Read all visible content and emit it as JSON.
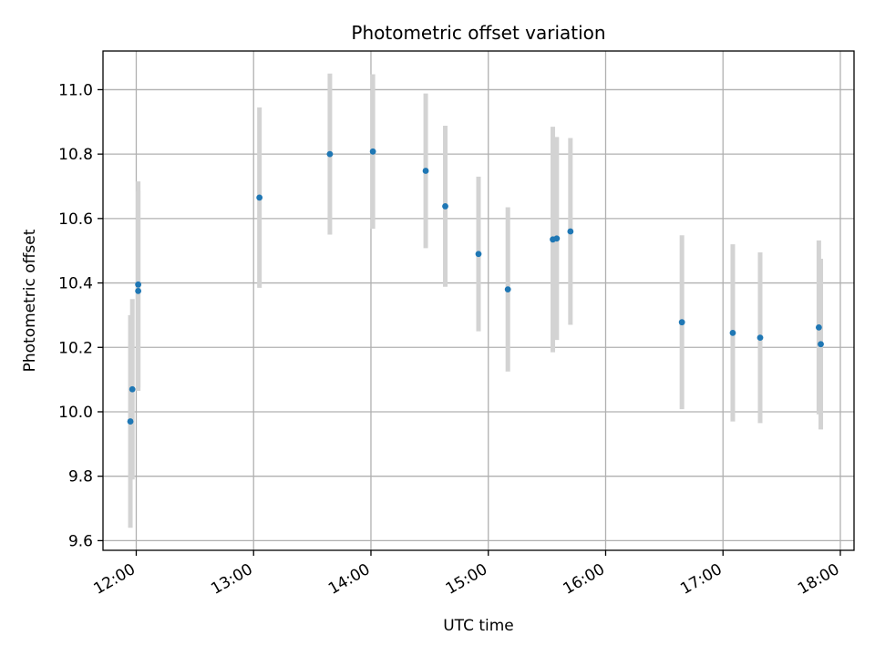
{
  "chart_data": {
    "type": "scatter",
    "title": "Photometric offset variation",
    "xlabel": "UTC time",
    "ylabel": "Photometric offset",
    "xlim": [
      "11:43",
      "18:07"
    ],
    "ylim": [
      9.57,
      11.12
    ],
    "x_ticks": [
      "12:00",
      "13:00",
      "14:00",
      "15:00",
      "16:00",
      "17:00",
      "18:00"
    ],
    "y_ticks": [
      9.6,
      9.8,
      10.0,
      10.2,
      10.4,
      10.6,
      10.8,
      11.0
    ],
    "y_tick_labels": [
      "9.6",
      "9.8",
      "10.0",
      "10.2",
      "10.4",
      "10.6",
      "10.8",
      "11.0"
    ],
    "grid": true,
    "point_color": "#1f77b4",
    "errorbar_color": "#d3d3d3",
    "series": [
      {
        "x": [
          "11:57",
          "11:58",
          "12:01",
          "12:01",
          "13:03",
          "13:39",
          "14:01",
          "14:28",
          "14:38",
          "14:55",
          "15:10",
          "15:33",
          "15:35",
          "15:42",
          "16:39",
          "17:05",
          "17:19",
          "17:49",
          "17:50"
        ],
        "y": [
          9.97,
          10.07,
          10.375,
          10.395,
          10.665,
          10.8,
          10.808,
          10.748,
          10.638,
          10.49,
          10.38,
          10.535,
          10.538,
          10.56,
          10.278,
          10.245,
          10.23,
          10.262,
          10.21
        ],
        "yerr": [
          0.33,
          0.28,
          0.31,
          0.32,
          0.28,
          0.25,
          0.24,
          0.24,
          0.25,
          0.24,
          0.255,
          0.35,
          0.315,
          0.29,
          0.27,
          0.275,
          0.265,
          0.27,
          0.265
        ]
      }
    ]
  }
}
